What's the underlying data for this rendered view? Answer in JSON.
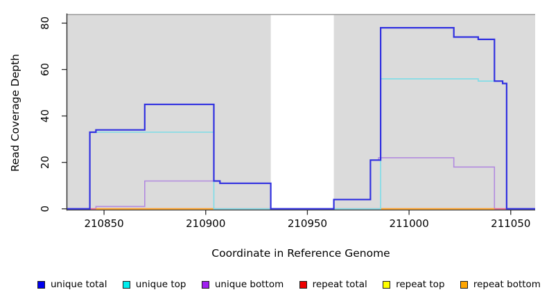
{
  "chart_data": {
    "type": "line",
    "subtype": "step-coverage",
    "title": "",
    "xlabel": "Coordinate in Reference Genome",
    "ylabel": "Read Coverage Depth",
    "xlim": [
      210831.9,
      211062
    ],
    "ylim": [
      0,
      83.7
    ],
    "xticks": [
      210850,
      210900,
      210950,
      211000,
      211050
    ],
    "yticks": [
      0,
      20,
      40,
      60,
      80
    ],
    "grid": false,
    "background_color": "#ffffff",
    "shaded_band_color": "#dbdbdb",
    "shaded_band_border_color": "#9c9c9c",
    "shaded_regions": [
      [
        210831.9,
        210932
      ],
      [
        210963,
        211062
      ]
    ],
    "uncovered_gap_region": [
      210932,
      210963
    ],
    "series": [
      {
        "name": "repeat top",
        "color": "#ffff55",
        "width": 1.2,
        "steps": [
          [
            210831.9,
            0
          ]
        ]
      },
      {
        "name": "unique bottom",
        "color": "#b289df",
        "width": 1.6,
        "steps": [
          [
            210831.9,
            0
          ],
          [
            210846,
            1
          ],
          [
            210870,
            12
          ],
          [
            210907,
            11
          ],
          [
            210932,
            0
          ],
          [
            210963,
            4
          ],
          [
            210981,
            21
          ],
          [
            210985,
            22
          ],
          [
            211022,
            18
          ],
          [
            211042,
            0
          ]
        ]
      },
      {
        "name": "repeat total",
        "color": "#ef6089",
        "width": 1.6,
        "steps": [
          [
            210831.9,
            0
          ]
        ]
      },
      {
        "name": "repeat bottom",
        "color": "#ffa428",
        "width": 2,
        "value": 0,
        "segments": [
          [
            210846,
            210904
          ],
          [
            210986,
            211042
          ]
        ]
      },
      {
        "name": "unique top",
        "color": "#7cdce8",
        "width": 1.6,
        "steps": [
          [
            210831.9,
            0
          ],
          [
            210843,
            33
          ],
          [
            210904,
            0
          ],
          [
            210986,
            56
          ],
          [
            211034,
            55
          ],
          [
            211046,
            54
          ],
          [
            211048,
            0
          ]
        ]
      },
      {
        "name": "unique total",
        "color": "#3030e0",
        "width": 2.2,
        "steps": [
          [
            210831.9,
            0
          ],
          [
            210843,
            33
          ],
          [
            210846,
            34
          ],
          [
            210870,
            45
          ],
          [
            210904,
            12
          ],
          [
            210907,
            11
          ],
          [
            210932,
            0
          ],
          [
            210963,
            4
          ],
          [
            210981,
            21
          ],
          [
            210986,
            78
          ],
          [
            211022,
            74
          ],
          [
            211034,
            73
          ],
          [
            211042,
            55
          ],
          [
            211046,
            54
          ],
          [
            211048,
            0
          ]
        ]
      }
    ]
  },
  "legend": {
    "items": [
      {
        "label": "unique total",
        "color": "#0000ee"
      },
      {
        "label": "unique top",
        "color": "#00eeee"
      },
      {
        "label": "unique bottom",
        "color": "#a020f0"
      },
      {
        "label": "repeat total",
        "color": "#ee0000"
      },
      {
        "label": "repeat top",
        "color": "#ffff00"
      },
      {
        "label": "repeat bottom",
        "color": "#ffa500"
      }
    ]
  }
}
